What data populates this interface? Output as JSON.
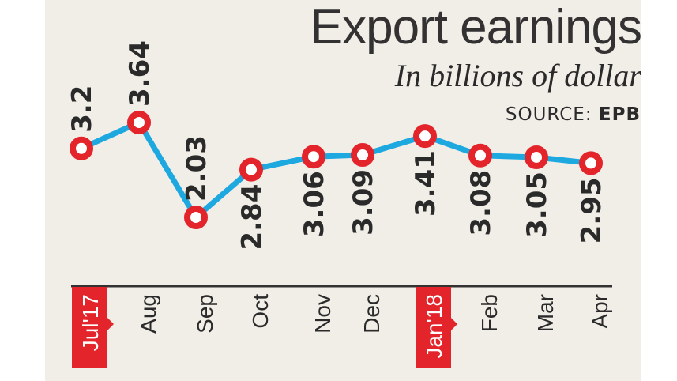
{
  "chart_data": {
    "type": "line",
    "title": "Export earnings",
    "subtitle": "In billions of dollar",
    "source_label": "SOURCE:",
    "source_value": "EPB",
    "xlabel": "",
    "ylabel": "",
    "categories": [
      "Jul'17",
      "Aug",
      "Sep",
      "Oct",
      "Nov",
      "Dec",
      "Jan'18",
      "Feb",
      "Mar",
      "Apr"
    ],
    "highlighted_categories": [
      "Jul'17",
      "Jan'18"
    ],
    "values": [
      3.2,
      3.64,
      2.03,
      2.84,
      3.06,
      3.09,
      3.41,
      3.08,
      3.05,
      2.95
    ],
    "value_labels": [
      "3.2",
      "3.64",
      "2.03",
      "2.84",
      "3.06",
      "3.09",
      "3.41",
      "3.08",
      "3.05",
      "2.95"
    ],
    "grid": false,
    "legend": "none"
  },
  "colors": {
    "background": "#f1eee7",
    "line": "#1ea8e0",
    "marker": "#e3242b",
    "highlight_tag": "#e3242b",
    "text": "#2b2a2b",
    "axis": "#333132"
  }
}
